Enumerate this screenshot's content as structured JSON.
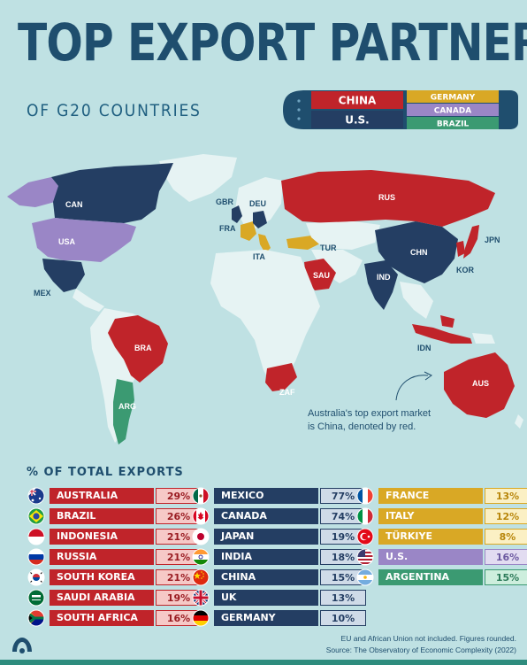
{
  "header": {
    "title": "TOP EXPORT PARTNER",
    "subtitle": "OF G20 COUNTRIES"
  },
  "legend": {
    "items": [
      {
        "label": "CHINA",
        "color": "#c0242a"
      },
      {
        "label": "U.S.",
        "color": "#243e63"
      },
      {
        "label": "GERMANY",
        "color": "#d9a825"
      },
      {
        "label": "CANADA",
        "color": "#9a86c6"
      },
      {
        "label": "BRAZIL",
        "color": "#3b9a72"
      }
    ]
  },
  "map": {
    "labels": [
      "CAN",
      "USA",
      "MEX",
      "BRA",
      "ARG",
      "GBR",
      "DEU",
      "FRA",
      "ITA",
      "TUR",
      "RUS",
      "SAU",
      "ZAF",
      "CHN",
      "IND",
      "JPN",
      "KOR",
      "IDN",
      "AUS"
    ],
    "annotation": [
      "Australia's top export market",
      "is China, denoted by red."
    ]
  },
  "section_title": "% OF TOTAL EXPORTS",
  "table": {
    "col1": [
      {
        "country": "AUSTRALIA",
        "pct": "29%",
        "flag": "australia-flag"
      },
      {
        "country": "BRAZIL",
        "pct": "26%",
        "flag": "brazil-flag"
      },
      {
        "country": "INDONESIA",
        "pct": "21%",
        "flag": "indonesia-flag"
      },
      {
        "country": "RUSSIA",
        "pct": "21%",
        "flag": "russia-flag"
      },
      {
        "country": "SOUTH KOREA",
        "pct": "21%",
        "flag": "south-korea-flag"
      },
      {
        "country": "SAUDI ARABIA",
        "pct": "19%",
        "flag": "saudi-arabia-flag"
      },
      {
        "country": "SOUTH AFRICA",
        "pct": "16%",
        "flag": "south-africa-flag"
      }
    ],
    "col2": [
      {
        "country": "MEXICO",
        "pct": "77%",
        "flag": "mexico-flag"
      },
      {
        "country": "CANADA",
        "pct": "74%",
        "flag": "canada-flag"
      },
      {
        "country": "JAPAN",
        "pct": "19%",
        "flag": "japan-flag"
      },
      {
        "country": "INDIA",
        "pct": "18%",
        "flag": "india-flag"
      },
      {
        "country": "CHINA",
        "pct": "15%",
        "flag": "china-flag"
      },
      {
        "country": "UK",
        "pct": "13%",
        "flag": "uk-flag"
      },
      {
        "country": "GERMANY",
        "pct": "10%",
        "flag": "germany-flag"
      }
    ],
    "col3": [
      {
        "country": "FRANCE",
        "pct": "13%",
        "flag": "france-flag"
      },
      {
        "country": "ITALY",
        "pct": "12%",
        "flag": "italy-flag"
      },
      {
        "country": "TÜRKIYE",
        "pct": "8%",
        "flag": "turkey-flag"
      },
      {
        "country": "U.S.",
        "pct": "16%",
        "flag": "us-flag"
      },
      {
        "country": "ARGENTINA",
        "pct": "15%",
        "flag": "argentina-flag"
      }
    ]
  },
  "footnote": {
    "line1": "EU and African Union not included. Figures rounded.",
    "line2": "Source: The Observatory of Economic Complexity (2022)"
  },
  "colors": {
    "china": "#c0242a",
    "china_light": "#f6c9c7",
    "us": "#243e63",
    "us_light": "#cfdbe8",
    "germany": "#d9a825",
    "germany_light": "#fbf0c4",
    "canada": "#9a86c6",
    "canada_light": "#e2dcf1",
    "brazil": "#3b9a72",
    "brazil_light": "#cdeedd"
  }
}
